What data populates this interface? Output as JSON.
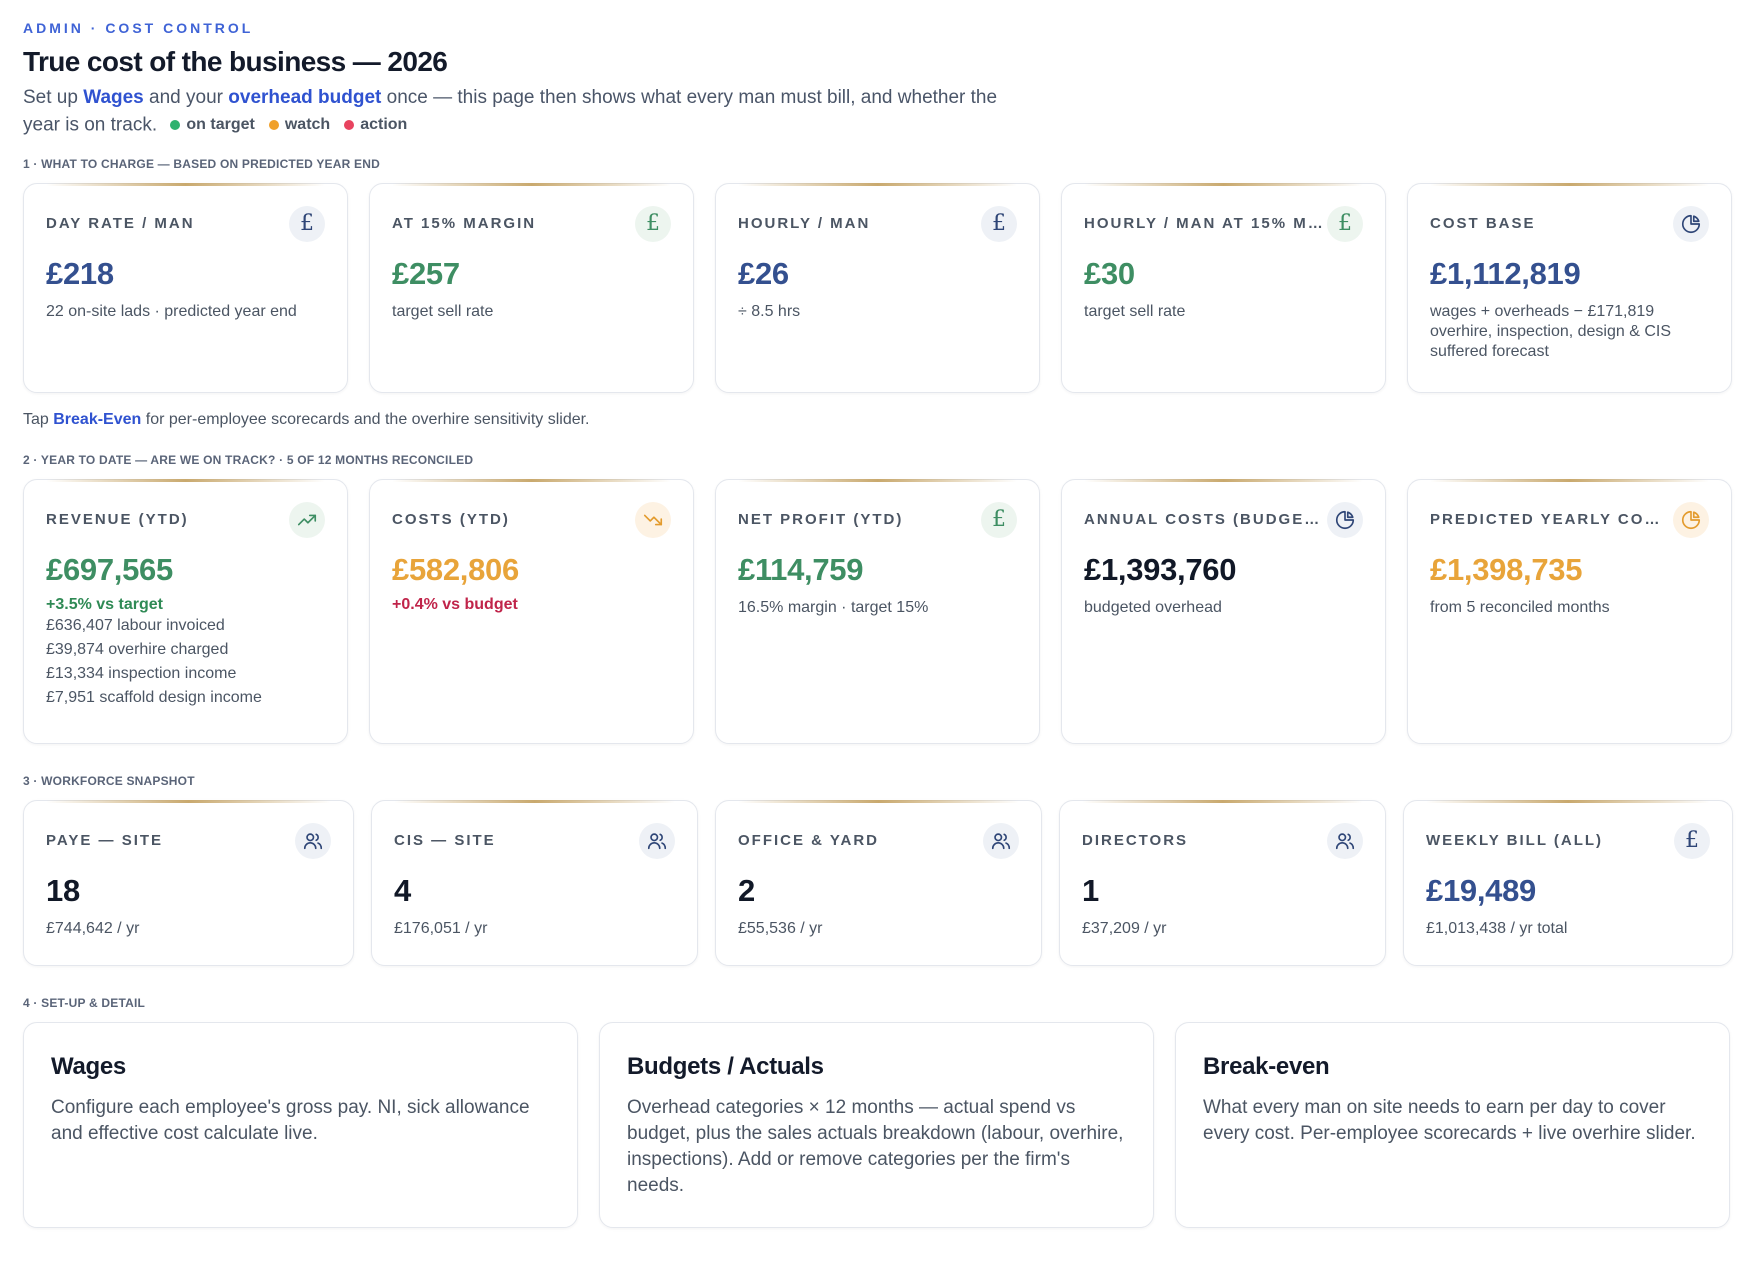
{
  "header": {
    "eyebrow": "ADMIN · COST CONTROL",
    "title": "True cost of the business — 2026",
    "intro_1": "Set up ",
    "intro_wages_link": "Wages",
    "intro_2": " and your ",
    "intro_overhead_link": "overhead budget",
    "intro_3": " once — this page then shows what every man must bill, and whether the year is on track.",
    "legend": [
      {
        "label": "on target",
        "color": "#2fb26f"
      },
      {
        "label": "watch",
        "color": "#f0a02a"
      },
      {
        "label": "action",
        "color": "#e8435f"
      }
    ]
  },
  "section1": {
    "label": "1 · WHAT TO CHARGE — BASED ON PREDICTED YEAR END",
    "cards": [
      {
        "label": "DAY RATE / MAN",
        "value": "£218",
        "sub": "22 on-site lads · predicted year end",
        "icon": "pound-icon",
        "tone": "navy"
      },
      {
        "label": "AT 15% MARGIN",
        "value": "£257",
        "sub": "target sell rate",
        "icon": "pound-icon",
        "tone": "green"
      },
      {
        "label": "HOURLY / MAN",
        "value": "£26",
        "sub": "÷ 8.5 hrs",
        "icon": "pound-icon",
        "tone": "navy"
      },
      {
        "label": "HOURLY / MAN AT 15% MA...",
        "value": "£30",
        "sub": "target sell rate",
        "icon": "pound-icon",
        "tone": "green"
      },
      {
        "label": "COST BASE",
        "value": "£1,112,819",
        "sub": "wages + overheads − £171,819 overhire, inspection, design & CIS suffered forecast",
        "icon": "pie-chart-icon",
        "tone": "navy"
      }
    ],
    "tap_1": "Tap ",
    "tap_link": "Break-Even",
    "tap_2": " for per-employee scorecards and the overhire sensitivity slider."
  },
  "section2": {
    "label": "2 · YEAR TO DATE — ARE WE ON TRACK? · 5 OF 12 MONTHS RECONCILED",
    "cards": [
      {
        "label": "REVENUE (YTD)",
        "value": "£697,565",
        "delta": "+3.5% vs target",
        "lines": [
          "£636,407 labour invoiced",
          "£39,874 overhire charged",
          "£13,334 inspection income",
          "£7,951 scaffold design income"
        ],
        "icon": "trending-up-icon"
      },
      {
        "label": "COSTS (YTD)",
        "value": "£582,806",
        "delta": "+0.4% vs budget",
        "icon": "trending-down-icon"
      },
      {
        "label": "NET PROFIT (YTD)",
        "value": "£114,759",
        "sub": "16.5% margin · target 15%",
        "icon": "pound-icon"
      },
      {
        "label": "ANNUAL COSTS (BUDGETED)",
        "value": "£1,393,760",
        "sub": "budgeted overhead",
        "icon": "pie-chart-icon"
      },
      {
        "label": "PREDICTED YEARLY COSTS",
        "value": "£1,398,735",
        "sub": "from 5 reconciled months",
        "icon": "pie-chart-icon"
      }
    ]
  },
  "section3": {
    "label": "3 · WORKFORCE SNAPSHOT",
    "cards": [
      {
        "label": "PAYE — SITE",
        "value": "18",
        "sub": "£744,642 / yr",
        "icon": "users-icon"
      },
      {
        "label": "CIS — SITE",
        "value": "4",
        "sub": "£176,051 / yr",
        "icon": "users-icon"
      },
      {
        "label": "OFFICE & YARD",
        "value": "2",
        "sub": "£55,536 / yr",
        "icon": "users-icon"
      },
      {
        "label": "DIRECTORS",
        "value": "1",
        "sub": "£37,209 / yr",
        "icon": "users-icon"
      },
      {
        "label": "WEEKLY BILL (ALL)",
        "value": "£19,489",
        "sub": "£1,013,438 / yr total",
        "icon": "pound-icon"
      }
    ]
  },
  "section4": {
    "label": "4 · SET-UP & DETAIL",
    "cards": [
      {
        "title": "Wages",
        "desc": "Configure each employee's gross pay. NI, sick allowance and effective cost calculate live."
      },
      {
        "title": "Budgets / Actuals",
        "desc": "Overhead categories × 12 months — actual spend vs budget, plus the sales actuals breakdown (labour, overhire, inspections). Add or remove categories per the firm's needs."
      },
      {
        "title": "Break-even",
        "desc": "What every man on site needs to earn per day to cover every cost. Per-employee scorecards + live overhire slider."
      }
    ]
  }
}
